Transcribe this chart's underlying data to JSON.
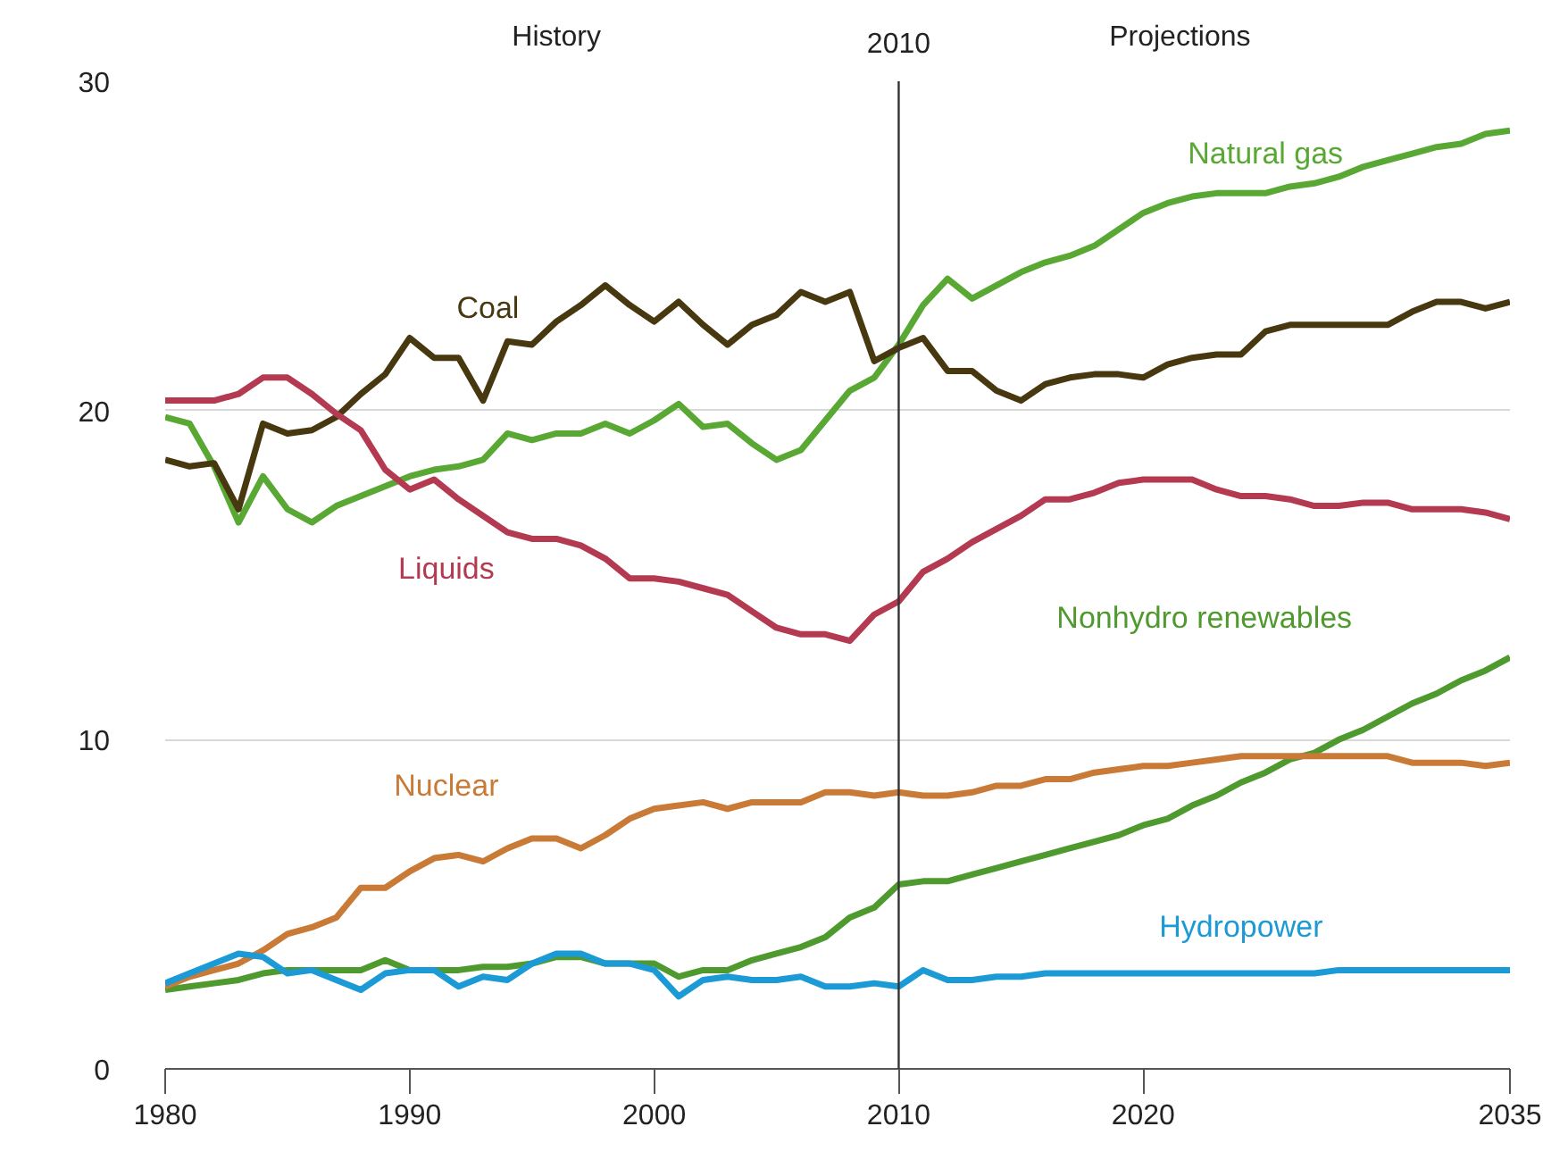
{
  "chart_data": {
    "type": "line",
    "x": [
      1980,
      1981,
      1982,
      1983,
      1984,
      1985,
      1986,
      1987,
      1988,
      1989,
      1990,
      1991,
      1992,
      1993,
      1994,
      1995,
      1996,
      1997,
      1998,
      1999,
      2000,
      2001,
      2002,
      2003,
      2004,
      2005,
      2006,
      2007,
      2008,
      2009,
      2010,
      2011,
      2012,
      2013,
      2014,
      2015,
      2016,
      2017,
      2018,
      2019,
      2020,
      2021,
      2022,
      2023,
      2024,
      2025,
      2026,
      2027,
      2028,
      2029,
      2030,
      2031,
      2032,
      2033,
      2034,
      2035
    ],
    "series": [
      {
        "name": "Natural gas",
        "color": "#5aa834",
        "values": [
          19.8,
          19.6,
          18.3,
          16.6,
          18.0,
          17.0,
          16.6,
          17.1,
          17.4,
          17.7,
          18.0,
          18.2,
          18.3,
          18.5,
          19.3,
          19.1,
          19.3,
          19.3,
          19.6,
          19.3,
          19.7,
          20.2,
          19.5,
          19.6,
          19.0,
          18.5,
          18.8,
          19.7,
          20.6,
          21.0,
          22.0,
          23.2,
          24.0,
          23.4,
          23.8,
          24.2,
          24.5,
          24.7,
          25.0,
          25.5,
          26.0,
          26.3,
          26.5,
          26.6,
          26.6,
          26.6,
          26.8,
          26.9,
          27.1,
          27.4,
          27.6,
          27.8,
          28.0,
          28.1,
          28.4,
          28.5
        ]
      },
      {
        "name": "Coal",
        "color": "#47380f",
        "values": [
          18.5,
          18.3,
          18.4,
          17.0,
          19.6,
          19.3,
          19.4,
          19.8,
          20.5,
          21.1,
          22.2,
          21.6,
          21.6,
          20.3,
          22.1,
          22.0,
          22.7,
          23.2,
          23.8,
          23.2,
          22.7,
          23.3,
          22.6,
          22.0,
          22.6,
          22.9,
          23.6,
          23.3,
          23.6,
          21.5,
          21.9,
          22.2,
          21.2,
          21.2,
          20.6,
          20.3,
          20.8,
          21.0,
          21.1,
          21.1,
          21.0,
          21.4,
          21.6,
          21.7,
          21.7,
          22.4,
          22.6,
          22.6,
          22.6,
          22.6,
          22.6,
          23.0,
          23.3,
          23.3,
          23.1,
          23.3
        ]
      },
      {
        "name": "Liquids",
        "color": "#b33a50",
        "values": [
          20.3,
          20.3,
          20.3,
          20.5,
          21.0,
          21.0,
          20.5,
          19.9,
          19.4,
          18.2,
          17.6,
          17.9,
          17.3,
          16.8,
          16.3,
          16.1,
          16.1,
          15.9,
          15.5,
          14.9,
          14.9,
          14.8,
          14.6,
          14.4,
          13.9,
          13.4,
          13.2,
          13.2,
          13.0,
          13.8,
          14.2,
          15.1,
          15.5,
          16.0,
          16.4,
          16.8,
          17.3,
          17.3,
          17.5,
          17.8,
          17.9,
          17.9,
          17.9,
          17.6,
          17.4,
          17.4,
          17.3,
          17.1,
          17.1,
          17.2,
          17.2,
          17.0,
          17.0,
          17.0,
          16.9,
          16.7
        ]
      },
      {
        "name": "Nonhydro renewables",
        "color": "#4f9a2e",
        "values": [
          2.4,
          2.5,
          2.6,
          2.7,
          2.9,
          3.0,
          3.0,
          3.0,
          3.0,
          3.3,
          3.0,
          3.0,
          3.0,
          3.1,
          3.1,
          3.2,
          3.4,
          3.4,
          3.2,
          3.2,
          3.2,
          2.8,
          3.0,
          3.0,
          3.3,
          3.5,
          3.7,
          4.0,
          4.6,
          4.9,
          5.6,
          5.7,
          5.7,
          5.9,
          6.1,
          6.3,
          6.5,
          6.7,
          6.9,
          7.1,
          7.4,
          7.6,
          8.0,
          8.3,
          8.7,
          9.0,
          9.4,
          9.6,
          10.0,
          10.3,
          10.7,
          11.1,
          11.4,
          11.8,
          12.1,
          12.5
        ]
      },
      {
        "name": "Nuclear",
        "color": "#c97a37",
        "values": [
          2.5,
          2.8,
          3.0,
          3.2,
          3.6,
          4.1,
          4.3,
          4.6,
          5.5,
          5.5,
          6.0,
          6.4,
          6.5,
          6.3,
          6.7,
          7.0,
          7.0,
          6.7,
          7.1,
          7.6,
          7.9,
          8.0,
          8.1,
          7.9,
          8.1,
          8.1,
          8.1,
          8.4,
          8.4,
          8.3,
          8.4,
          8.3,
          8.3,
          8.4,
          8.6,
          8.6,
          8.8,
          8.8,
          9.0,
          9.1,
          9.2,
          9.2,
          9.3,
          9.4,
          9.5,
          9.5,
          9.5,
          9.5,
          9.5,
          9.5,
          9.5,
          9.3,
          9.3,
          9.3,
          9.2,
          9.3
        ]
      },
      {
        "name": "Hydropower",
        "color": "#1c9ad6",
        "values": [
          2.6,
          2.9,
          3.2,
          3.5,
          3.4,
          2.9,
          3.0,
          2.7,
          2.4,
          2.9,
          3.0,
          3.0,
          2.5,
          2.8,
          2.7,
          3.2,
          3.5,
          3.5,
          3.2,
          3.2,
          3.0,
          2.2,
          2.7,
          2.8,
          2.7,
          2.7,
          2.8,
          2.5,
          2.5,
          2.6,
          2.5,
          3.0,
          2.7,
          2.7,
          2.8,
          2.8,
          2.9,
          2.9,
          2.9,
          2.9,
          2.9,
          2.9,
          2.9,
          2.9,
          2.9,
          2.9,
          2.9,
          2.9,
          3.0,
          3.0,
          3.0,
          3.0,
          3.0,
          3.0,
          3.0,
          3.0
        ]
      }
    ],
    "xlim": [
      1980,
      2035
    ],
    "xticks": [
      1980,
      1990,
      2000,
      2010,
      2020,
      2035
    ],
    "ylim": [
      0,
      30
    ],
    "yticks": [
      0,
      10,
      20,
      30
    ],
    "grid": "y",
    "ref_lines": [
      {
        "axis": "x",
        "value": 2010,
        "label": "2010",
        "color": "#333333"
      }
    ],
    "annotations": [
      "History",
      "Projections"
    ]
  }
}
